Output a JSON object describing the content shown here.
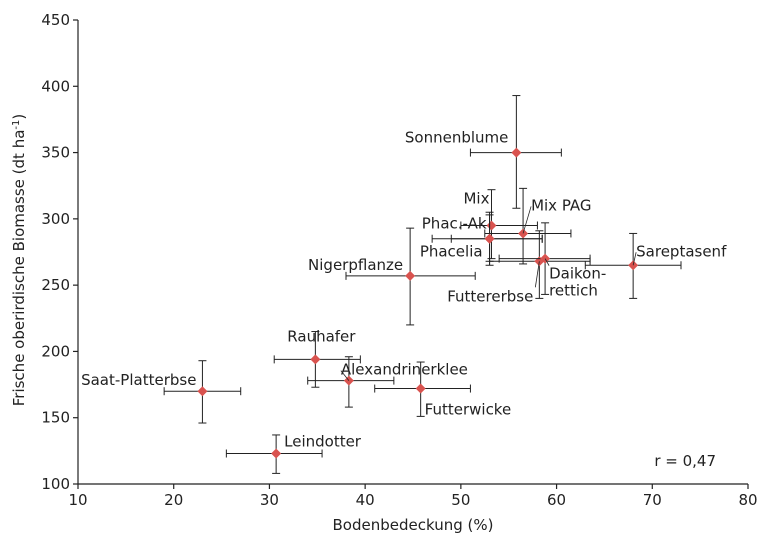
{
  "chart_data": {
    "type": "scatter",
    "title": "",
    "xlabel": "Bodenbedeckung (%)",
    "ylabel": "Frische oberirdische Biomasse (dt ha-1)",
    "ylabel_main": "Frische oberirdische Biomasse (dt ha",
    "ylabel_sup": "-1",
    "ylabel_close": ")",
    "xlim": [
      10,
      80
    ],
    "ylim": [
      100,
      450
    ],
    "xticks": [
      10,
      20,
      30,
      40,
      50,
      60,
      70,
      80
    ],
    "yticks": [
      100,
      150,
      200,
      250,
      300,
      350,
      400,
      450
    ],
    "grid": false,
    "marker_color": "#d9534f",
    "annotation": "r = 0,47",
    "points": [
      {
        "name": "Sonnenblume",
        "x": 55.8,
        "y": 350,
        "xerr": [
          51.0,
          60.5
        ],
        "yerr": [
          308,
          393
        ]
      },
      {
        "name": "Mix",
        "x": 53.2,
        "y": 295,
        "xerr": [
          50.0,
          58.0
        ],
        "yerr": [
          270,
          322
        ]
      },
      {
        "name": "Mix PAG",
        "x": 56.5,
        "y": 289,
        "xerr": [
          52.5,
          61.5
        ],
        "yerr": [
          266,
          323
        ]
      },
      {
        "name": "Phac.-Ak",
        "x": 53.0,
        "y": 285,
        "xerr": [
          47.0,
          58.5
        ],
        "yerr": [
          265,
          305
        ]
      },
      {
        "name": "Phacelia",
        "x": 53.0,
        "y": 285,
        "xerr": [
          49.0,
          58.5
        ],
        "yerr": [
          268,
          303
        ]
      },
      {
        "name": "Futtererbse",
        "x": 58.2,
        "y": 268,
        "xerr": [
          53.0,
          63.5
        ],
        "yerr": [
          240,
          291
        ]
      },
      {
        "name": "Daikon-\nrettich",
        "x": 58.8,
        "y": 270,
        "xerr": [
          54.0,
          63.5
        ],
        "yerr": [
          243,
          297
        ]
      },
      {
        "name": "Sareptasenf",
        "x": 68.0,
        "y": 265,
        "xerr": [
          63.0,
          73.0
        ],
        "yerr": [
          240,
          289
        ]
      },
      {
        "name": "Nigerpflanze",
        "x": 44.7,
        "y": 257,
        "xerr": [
          38.0,
          51.5
        ],
        "yerr": [
          220,
          293
        ]
      },
      {
        "name": "Rauhafer",
        "x": 34.8,
        "y": 194,
        "xerr": [
          30.5,
          39.5
        ],
        "yerr": [
          173,
          215
        ]
      },
      {
        "name": "Alexandrinerklee",
        "x": 38.3,
        "y": 178,
        "xerr": [
          34.0,
          43.0
        ],
        "yerr": [
          158,
          196
        ]
      },
      {
        "name": "Futterwicke",
        "x": 45.8,
        "y": 172,
        "xerr": [
          41.0,
          51.0
        ],
        "yerr": [
          151,
          192
        ]
      },
      {
        "name": "Saat-Platterbse",
        "x": 23.0,
        "y": 170,
        "xerr": [
          19.0,
          27.0
        ],
        "yerr": [
          146,
          193
        ]
      },
      {
        "name": "Leindotter",
        "x": 30.7,
        "y": 123,
        "xerr": [
          25.5,
          35.5
        ],
        "yerr": [
          108,
          137
        ]
      }
    ]
  }
}
